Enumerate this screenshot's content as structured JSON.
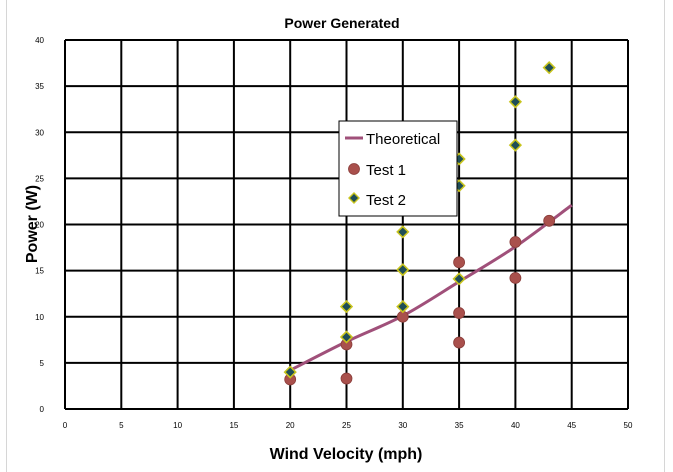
{
  "chart_data": {
    "type": "scatter",
    "title": "Power Generated",
    "xlabel": "Wind Velocity (mph)",
    "ylabel": "Power (W)",
    "xlim": [
      0,
      50
    ],
    "ylim": [
      0,
      40
    ],
    "x_ticks": [
      0,
      5,
      10,
      15,
      20,
      25,
      30,
      35,
      40,
      45,
      50
    ],
    "y_ticks": [
      0,
      5,
      10,
      15,
      20,
      25,
      30,
      35,
      40
    ],
    "grid": true,
    "legend_position": "center",
    "series": [
      {
        "name": "Theoretical",
        "kind": "line",
        "color": "#a0507a",
        "points": [
          [
            20,
            4.2
          ],
          [
            25,
            7.3
          ],
          [
            30,
            10.1
          ],
          [
            35,
            13.8
          ],
          [
            40,
            17.6
          ],
          [
            45,
            22.1
          ]
        ]
      },
      {
        "name": "Test 1",
        "kind": "circle",
        "color": "#a9504c",
        "points": [
          [
            20,
            3.2
          ],
          [
            25,
            3.3
          ],
          [
            25,
            7.0
          ],
          [
            30,
            10.0
          ],
          [
            35,
            7.2
          ],
          [
            35,
            10.4
          ],
          [
            35,
            15.9
          ],
          [
            40,
            14.2
          ],
          [
            40,
            18.1
          ],
          [
            43,
            20.4
          ]
        ]
      },
      {
        "name": "Test 2",
        "kind": "diamond",
        "color": "#1f4e57",
        "edge_color": "#c8c41e",
        "points": [
          [
            20,
            4.0
          ],
          [
            25,
            7.8
          ],
          [
            25,
            11.1
          ],
          [
            30,
            11.1
          ],
          [
            30,
            15.1
          ],
          [
            30,
            19.2
          ],
          [
            35,
            14.1
          ],
          [
            35,
            24.2
          ],
          [
            35,
            27.1
          ],
          [
            40,
            28.6
          ],
          [
            40,
            33.3
          ],
          [
            43,
            37.0
          ]
        ]
      }
    ]
  }
}
